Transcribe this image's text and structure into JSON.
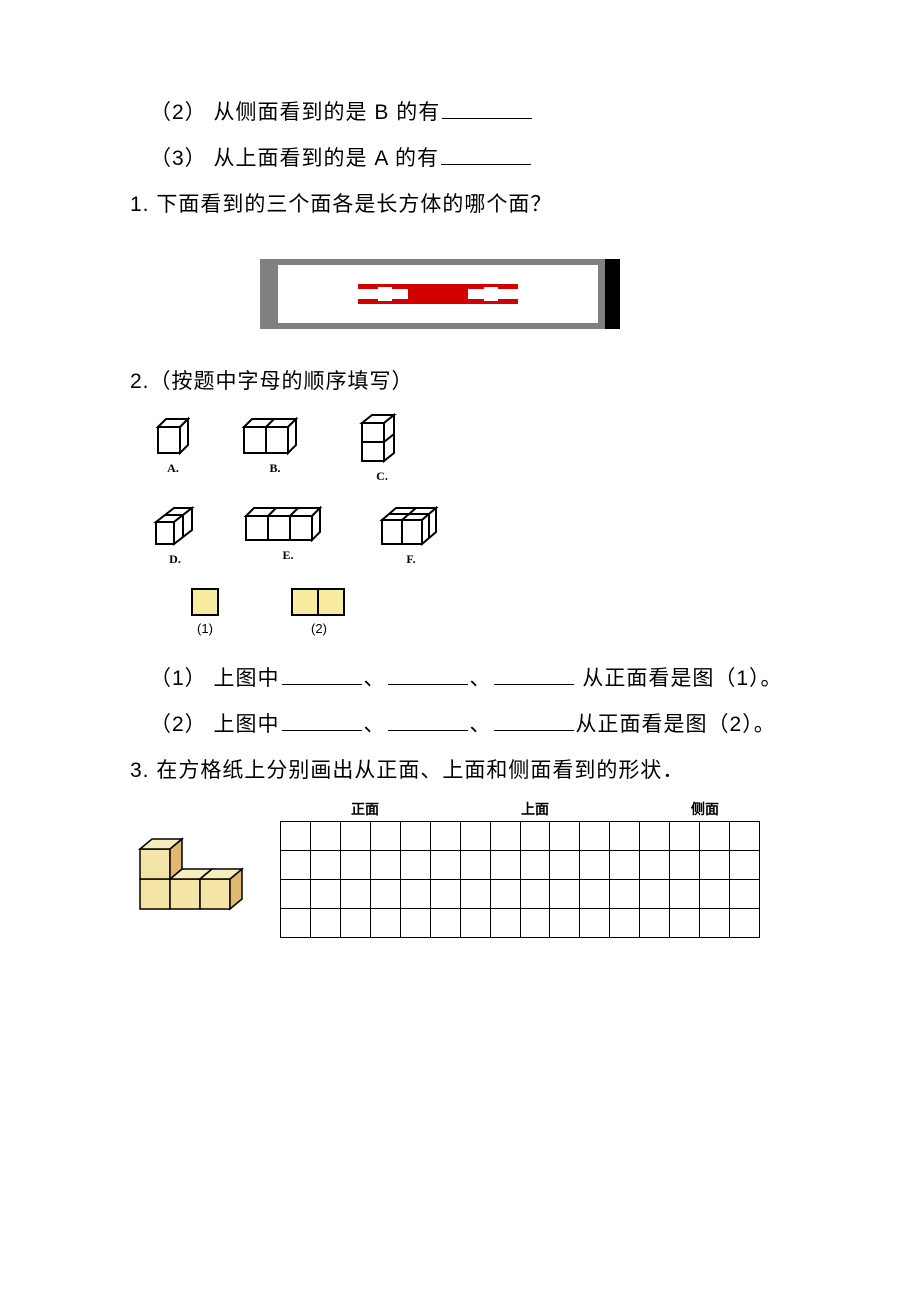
{
  "top_lines": [
    {
      "prefix": "（2） 从侧面看到的是 B 的有",
      "blank_width": 90
    },
    {
      "prefix": "（3） 从上面看到的是 A 的有",
      "blank_width": 90
    }
  ],
  "q1": {
    "text": "1. 下面看到的三个面各是长方体的哪个面？",
    "image": {
      "outer_bg": "#808080",
      "inner_bg": "#ffffff",
      "bar_color": "#d40000",
      "black_edge": "#000000"
    }
  },
  "q2": {
    "title": "2.（按题中字母的顺序填写）",
    "row1_labels": [
      "A.",
      "B.",
      "C."
    ],
    "row2_labels": [
      "D.",
      "E.",
      "F."
    ],
    "yellow_labels": [
      "(1)",
      "(2)"
    ],
    "cube_stroke": "#000000",
    "cube_fill": "#ffffff",
    "yellow_fill": "#f9eca0",
    "sub1": {
      "prefix": "（1） 上图中",
      "sep": "、",
      "suffix": " 从正面看是图（1）。",
      "blank_width": 80,
      "blank_count": 3
    },
    "sub2": {
      "prefix": "（2） 上图中",
      "sep": "、",
      "suffix": "从正面看是图（2）。",
      "blank_width": 80,
      "blank_count": 3
    }
  },
  "q3": {
    "title": "3. 在方格纸上分别画出从正面、上面和侧面看到的形状．",
    "headers": [
      "正面",
      "上面",
      "侧面"
    ],
    "grid": {
      "rows": 4,
      "cols": 16,
      "cell_border": "#000000"
    },
    "solid": {
      "face_fill": "#f5e4a8",
      "top_fill": "#f8edbd",
      "side_fill": "#e0b870",
      "stroke": "#000000"
    }
  },
  "text_color": "#000000",
  "bg_color": "#ffffff",
  "body_fontsize": 21
}
